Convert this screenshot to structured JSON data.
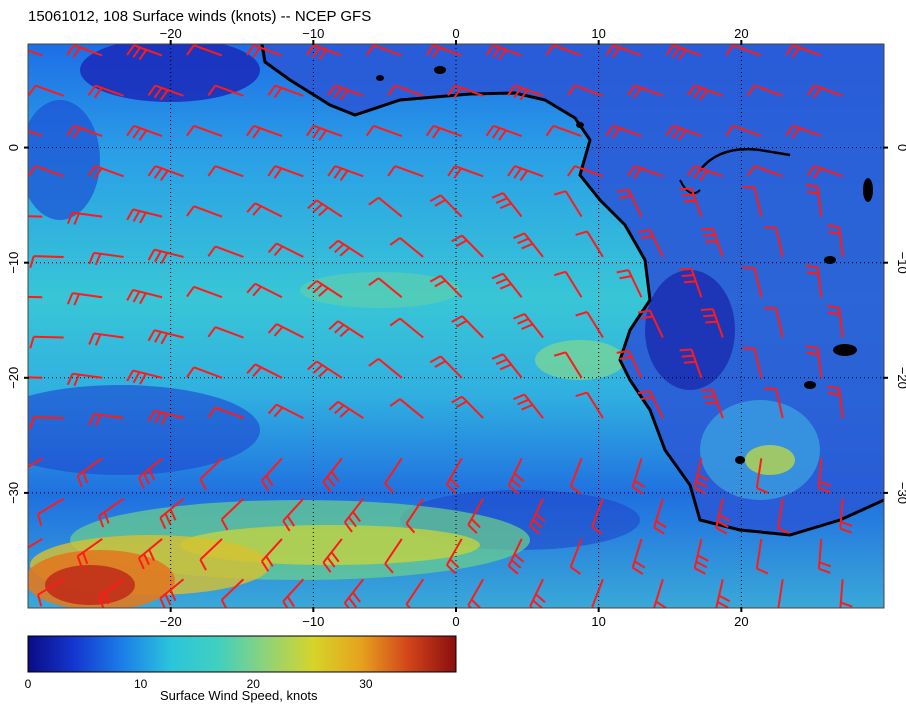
{
  "title": "15061012, 108 Surface winds (knots) -- NCEP GFS",
  "map": {
    "lon_range": [
      -30,
      30
    ],
    "lat_range": [
      -40,
      9
    ],
    "lon_ticks": [
      {
        "value": -20,
        "label": "−20"
      },
      {
        "value": -10,
        "label": "−10"
      },
      {
        "value": 0,
        "label": "0"
      },
      {
        "value": 10,
        "label": "10"
      },
      {
        "value": 20,
        "label": "20"
      }
    ],
    "lat_ticks": [
      {
        "value": 0,
        "label": "0"
      },
      {
        "value": -10,
        "label": "−10"
      },
      {
        "value": -20,
        "label": "−20"
      },
      {
        "value": -30,
        "label": "−30"
      }
    ],
    "gridlines": "dotted",
    "barb_color": "#ff1a1a",
    "coast_color": "#000000"
  },
  "colorbar": {
    "min": 0,
    "max": 38,
    "ticks": [
      {
        "value": 0,
        "label": "0"
      },
      {
        "value": 10,
        "label": "10"
      },
      {
        "value": 20,
        "label": "20"
      },
      {
        "value": 30,
        "label": "30"
      }
    ],
    "label": "Surface Wind Speed, knots",
    "colors": [
      "#0b0b86",
      "#1438d0",
      "#1c7fe8",
      "#2bc4dc",
      "#40d0c0",
      "#8ed37a",
      "#d6d42a",
      "#e6a21e",
      "#d2441a",
      "#8a0e0e"
    ]
  }
}
